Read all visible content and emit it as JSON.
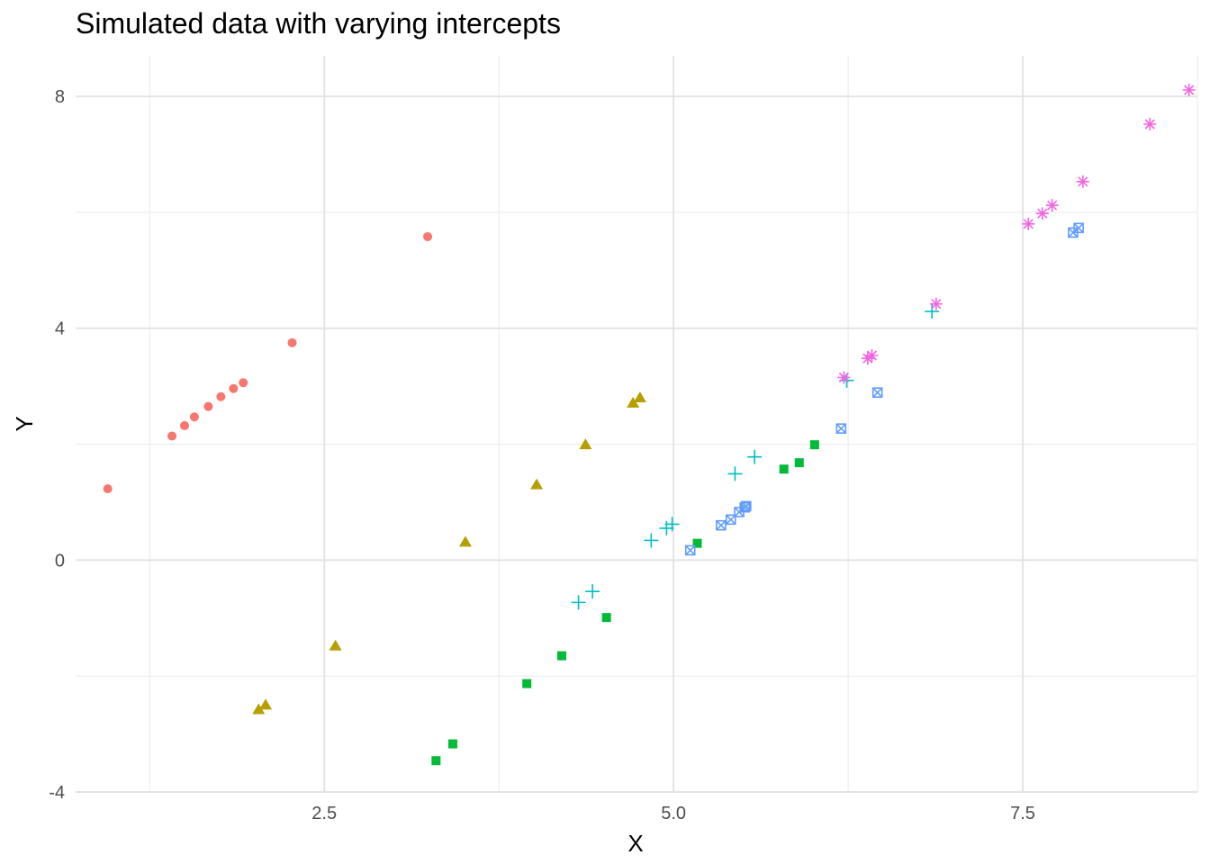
{
  "chart_data": {
    "type": "scatter",
    "title": "Simulated data with varying intercepts",
    "xlabel": "X",
    "ylabel": "Y",
    "xlim": [
      0.72,
      8.75
    ],
    "ylim": [
      -4,
      8.7
    ],
    "x_ticks": [
      2.5,
      5.0,
      7.5
    ],
    "x_tick_labels": [
      "2.5",
      "5.0",
      "7.5"
    ],
    "y_ticks": [
      -4,
      0,
      4,
      8
    ],
    "y_tick_labels": [
      "-4",
      "0",
      "4",
      "8"
    ],
    "grid": true,
    "legend": "none",
    "series": [
      {
        "color": "#F8766D",
        "shape": "circle",
        "points": [
          [
            0.95,
            1.23
          ],
          [
            1.41,
            2.14
          ],
          [
            1.5,
            2.32
          ],
          [
            1.57,
            2.47
          ],
          [
            1.67,
            2.65
          ],
          [
            1.76,
            2.82
          ],
          [
            1.85,
            2.96
          ],
          [
            1.92,
            3.06
          ],
          [
            2.27,
            3.75
          ],
          [
            3.24,
            5.58
          ]
        ]
      },
      {
        "color": "#B79F00",
        "shape": "triangle",
        "points": [
          [
            2.03,
            -2.58
          ],
          [
            2.08,
            -2.5
          ],
          [
            2.58,
            -1.48
          ],
          [
            3.51,
            0.31
          ],
          [
            4.02,
            1.3
          ],
          [
            4.37,
            1.99
          ],
          [
            4.71,
            2.71
          ],
          [
            4.76,
            2.8
          ]
        ]
      },
      {
        "color": "#00BA38",
        "shape": "square",
        "points": [
          [
            3.3,
            -3.46
          ],
          [
            3.42,
            -3.17
          ],
          [
            3.95,
            -2.13
          ],
          [
            4.2,
            -1.65
          ],
          [
            4.52,
            -0.99
          ],
          [
            5.17,
            0.29
          ],
          [
            5.79,
            1.57
          ],
          [
            5.9,
            1.68
          ],
          [
            6.01,
            1.99
          ]
        ]
      },
      {
        "color": "#00BFC4",
        "shape": "plus",
        "points": [
          [
            4.32,
            -0.73
          ],
          [
            4.42,
            -0.54
          ],
          [
            4.84,
            0.34
          ],
          [
            4.95,
            0.55
          ],
          [
            4.99,
            0.62
          ],
          [
            5.44,
            1.49
          ],
          [
            5.58,
            1.78
          ],
          [
            6.24,
            3.1
          ],
          [
            6.85,
            4.29
          ]
        ]
      },
      {
        "color": "#619CFF",
        "shape": "square-cross",
        "points": [
          [
            5.12,
            0.17
          ],
          [
            5.34,
            0.6
          ],
          [
            5.41,
            0.7
          ],
          [
            5.47,
            0.83
          ],
          [
            5.51,
            0.91
          ],
          [
            5.52,
            0.93
          ],
          [
            6.2,
            2.27
          ],
          [
            6.46,
            2.89
          ],
          [
            7.86,
            5.65
          ],
          [
            7.9,
            5.73
          ]
        ]
      },
      {
        "color": "#F564E3",
        "shape": "asterisk",
        "points": [
          [
            6.22,
            3.15
          ],
          [
            6.39,
            3.48
          ],
          [
            6.42,
            3.53
          ],
          [
            6.88,
            4.42
          ],
          [
            7.54,
            5.8
          ],
          [
            7.64,
            5.98
          ],
          [
            7.71,
            6.12
          ],
          [
            7.93,
            6.53
          ],
          [
            8.41,
            7.52
          ],
          [
            8.69,
            8.11
          ]
        ]
      }
    ]
  }
}
